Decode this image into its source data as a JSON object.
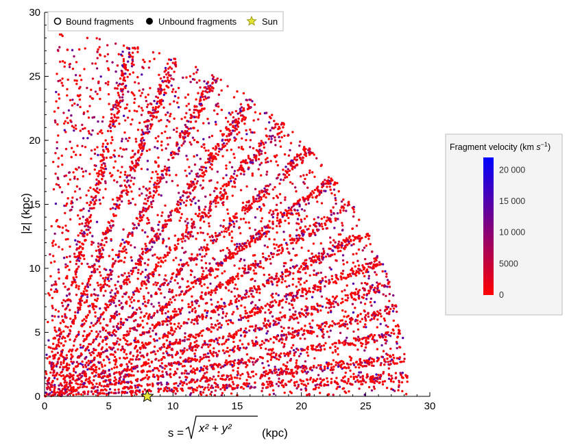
{
  "chart_data": {
    "type": "scatter",
    "title": "",
    "xlabel": "s = √(x² + y²)  (kpc)",
    "xlabel_parts": {
      "prefix": "s = ",
      "radicand": "x² + y²",
      "unit": "(kpc)"
    },
    "ylabel": "|z| (kpc)",
    "xlim": [
      0,
      30
    ],
    "ylim": [
      0,
      30
    ],
    "xticks": [
      "0",
      "5",
      "10",
      "15",
      "20",
      "25",
      "30"
    ],
    "yticks": [
      "0",
      "5",
      "10",
      "15",
      "20",
      "25",
      "30"
    ],
    "grid": false,
    "legend_position": "top-left",
    "legend": [
      {
        "label": "Bound fragments",
        "marker": "open-circle"
      },
      {
        "label": "Unbound fragments",
        "marker": "filled-circle"
      },
      {
        "label": "Sun",
        "marker": "star"
      }
    ],
    "sun": {
      "s": 8.0,
      "z": 0.0
    },
    "colorbar": {
      "title": "Fragment velocity (km s⁻¹)",
      "title_parts": {
        "text": "Fragment velocity (km ",
        "unit": "s",
        "exp": "−1",
        "close": ")"
      },
      "min": 0,
      "max": 22000,
      "ticks": [
        {
          "value": 0,
          "label": "0"
        },
        {
          "value": 5000,
          "label": "5000"
        },
        {
          "value": 10000,
          "label": "10 000"
        },
        {
          "value": 15000,
          "label": "15 000"
        },
        {
          "value": 20000,
          "label": "20 000"
        }
      ],
      "colors": [
        "#ff0000",
        "#0000ff"
      ]
    },
    "distribution": {
      "max_radius_kpc": 28.3,
      "point_count": 7000,
      "ray_angles_deg": [
        3,
        6,
        10,
        14,
        18,
        22,
        27,
        32,
        37,
        43,
        49,
        55,
        62,
        69,
        76
      ]
    }
  },
  "colors": {
    "point_low": "#ff0000",
    "point_high": "#0000ff",
    "sun_fill": "#e6e632",
    "axis": "#000000"
  }
}
